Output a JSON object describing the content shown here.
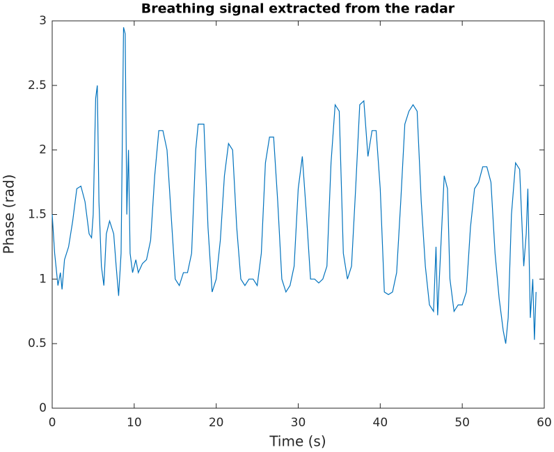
{
  "chart_data": {
    "type": "line",
    "title": "Breathing signal extracted from the radar",
    "xlabel": "Time (s)",
    "ylabel": "Phase (rad)",
    "x": [
      0,
      0.3,
      0.7,
      1.0,
      1.2,
      1.5,
      2.0,
      2.5,
      3.0,
      3.5,
      4.0,
      4.5,
      4.8,
      5.0,
      5.3,
      5.5,
      5.7,
      6.0,
      6.3,
      6.6,
      7.0,
      7.5,
      7.8,
      8.1,
      8.4,
      8.7,
      8.9,
      9.1,
      9.3,
      9.5,
      9.8,
      10.2,
      10.5,
      11,
      11.5,
      12,
      12.5,
      13,
      13.5,
      14,
      14.5,
      15,
      15.5,
      16,
      16.5,
      17,
      17.5,
      17.8,
      18.5,
      19,
      19.5,
      20,
      20.5,
      21,
      21.5,
      22,
      22.5,
      23,
      23.5,
      24,
      24.5,
      25,
      25.5,
      26,
      26.5,
      27,
      27.5,
      28,
      28.5,
      29,
      29.5,
      30,
      30.5,
      31,
      31.5,
      32,
      32.5,
      33,
      33.5,
      34,
      34.5,
      35,
      35.5,
      36,
      36.5,
      37,
      37.5,
      38,
      38.5,
      39,
      39.5,
      40,
      40.5,
      41,
      41.5,
      42,
      42.5,
      43,
      43.5,
      44,
      44.5,
      45,
      45.5,
      46,
      46.5,
      46.8,
      47,
      47.5,
      47.8,
      48.2,
      48.5,
      49,
      49.5,
      50,
      50.5,
      51,
      51.5,
      52,
      52.5,
      53,
      53.5,
      54,
      54.5,
      55,
      55.3,
      55.6,
      56,
      56.5,
      57,
      57.5,
      57.8,
      58,
      58.3,
      58.6,
      58.8,
      59
    ],
    "series": [
      {
        "name": "Phase",
        "color": "#0072bd",
        "values": [
          1.5,
          1.2,
          0.95,
          1.05,
          0.92,
          1.15,
          1.25,
          1.45,
          1.7,
          1.72,
          1.6,
          1.35,
          1.32,
          1.5,
          2.4,
          2.5,
          1.6,
          1.1,
          0.95,
          1.35,
          1.45,
          1.35,
          1.1,
          0.87,
          1.2,
          2.95,
          2.9,
          1.5,
          2.0,
          1.2,
          1.05,
          1.15,
          1.05,
          1.12,
          1.15,
          1.3,
          1.8,
          2.15,
          2.15,
          2.0,
          1.5,
          1.0,
          0.95,
          1.05,
          1.05,
          1.2,
          2.0,
          2.2,
          2.2,
          1.4,
          0.9,
          1.0,
          1.3,
          1.8,
          2.05,
          2.0,
          1.4,
          1.0,
          0.95,
          1.0,
          1.0,
          0.95,
          1.2,
          1.9,
          2.1,
          2.1,
          1.6,
          1.0,
          0.9,
          0.95,
          1.1,
          1.7,
          1.95,
          1.5,
          1.0,
          1.0,
          0.97,
          1.0,
          1.1,
          1.9,
          2.35,
          2.3,
          1.2,
          1.0,
          1.1,
          1.7,
          2.35,
          2.38,
          1.95,
          2.15,
          2.15,
          1.7,
          0.9,
          0.88,
          0.9,
          1.05,
          1.6,
          2.2,
          2.3,
          2.35,
          2.3,
          1.6,
          1.1,
          0.8,
          0.75,
          1.25,
          0.72,
          1.4,
          1.8,
          1.7,
          1.0,
          0.75,
          0.8,
          0.8,
          0.9,
          1.4,
          1.7,
          1.75,
          1.87,
          1.87,
          1.75,
          1.2,
          0.85,
          0.6,
          0.5,
          0.7,
          1.5,
          1.9,
          1.85,
          1.1,
          1.35,
          1.7,
          0.7,
          1.0,
          0.53,
          0.9
        ]
      }
    ],
    "xlim": [
      0,
      60
    ],
    "xticks": [
      0,
      10,
      20,
      30,
      40,
      50,
      60
    ],
    "ylim": [
      0,
      3
    ],
    "yticks": [
      0,
      0.5,
      1,
      1.5,
      2,
      2.5,
      3
    ]
  }
}
